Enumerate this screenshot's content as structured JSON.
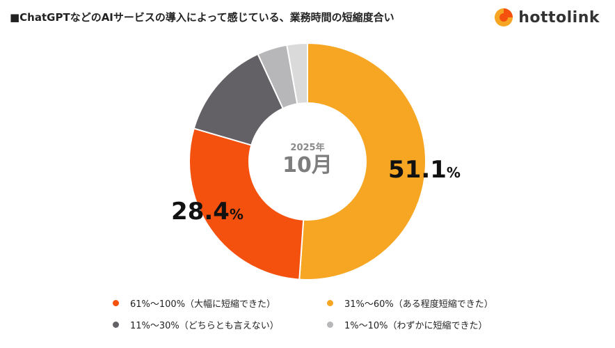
{
  "header": {
    "title": "■ChatGPTなどのAIサービスの導入によって感じている、業務時間の短縮度合い",
    "brand": "hottolink"
  },
  "icons": {
    "brand_logo": "hottolink-logo-icon"
  },
  "chart_data": {
    "type": "pie",
    "donut": true,
    "center_label": {
      "year": "2025年",
      "month": "10月"
    },
    "categories": [
      "31%〜60%（ある程度短縮できた）",
      "61%〜100%（大幅に短縮できた）",
      "11%〜30%（どちらとも言えない）",
      "1%〜10%（わずかに短縮できた）",
      ""
    ],
    "values": [
      51.1,
      28.4,
      13.6,
      4.1,
      2.8
    ],
    "colors": [
      "#F6A623",
      "#F4500E",
      "#636066",
      "#B7B6B8",
      "#DADADA"
    ],
    "data_labels": [
      {
        "value": "51.1",
        "unit": "%"
      },
      {
        "value": "28.4",
        "unit": "%"
      }
    ],
    "legend": {
      "placement": "bottom",
      "items": [
        {
          "label": "61%〜100%（大幅に短縮できた）",
          "color": "#F4500E"
        },
        {
          "label": "31%〜60%（ある程度短縮できた）",
          "color": "#F6A623"
        },
        {
          "label": "11%〜30%（どちらとも言えない）",
          "color": "#636066"
        },
        {
          "label": "1%〜10%（わずかに短縮できた）",
          "color": "#B7B6B8"
        }
      ]
    }
  }
}
